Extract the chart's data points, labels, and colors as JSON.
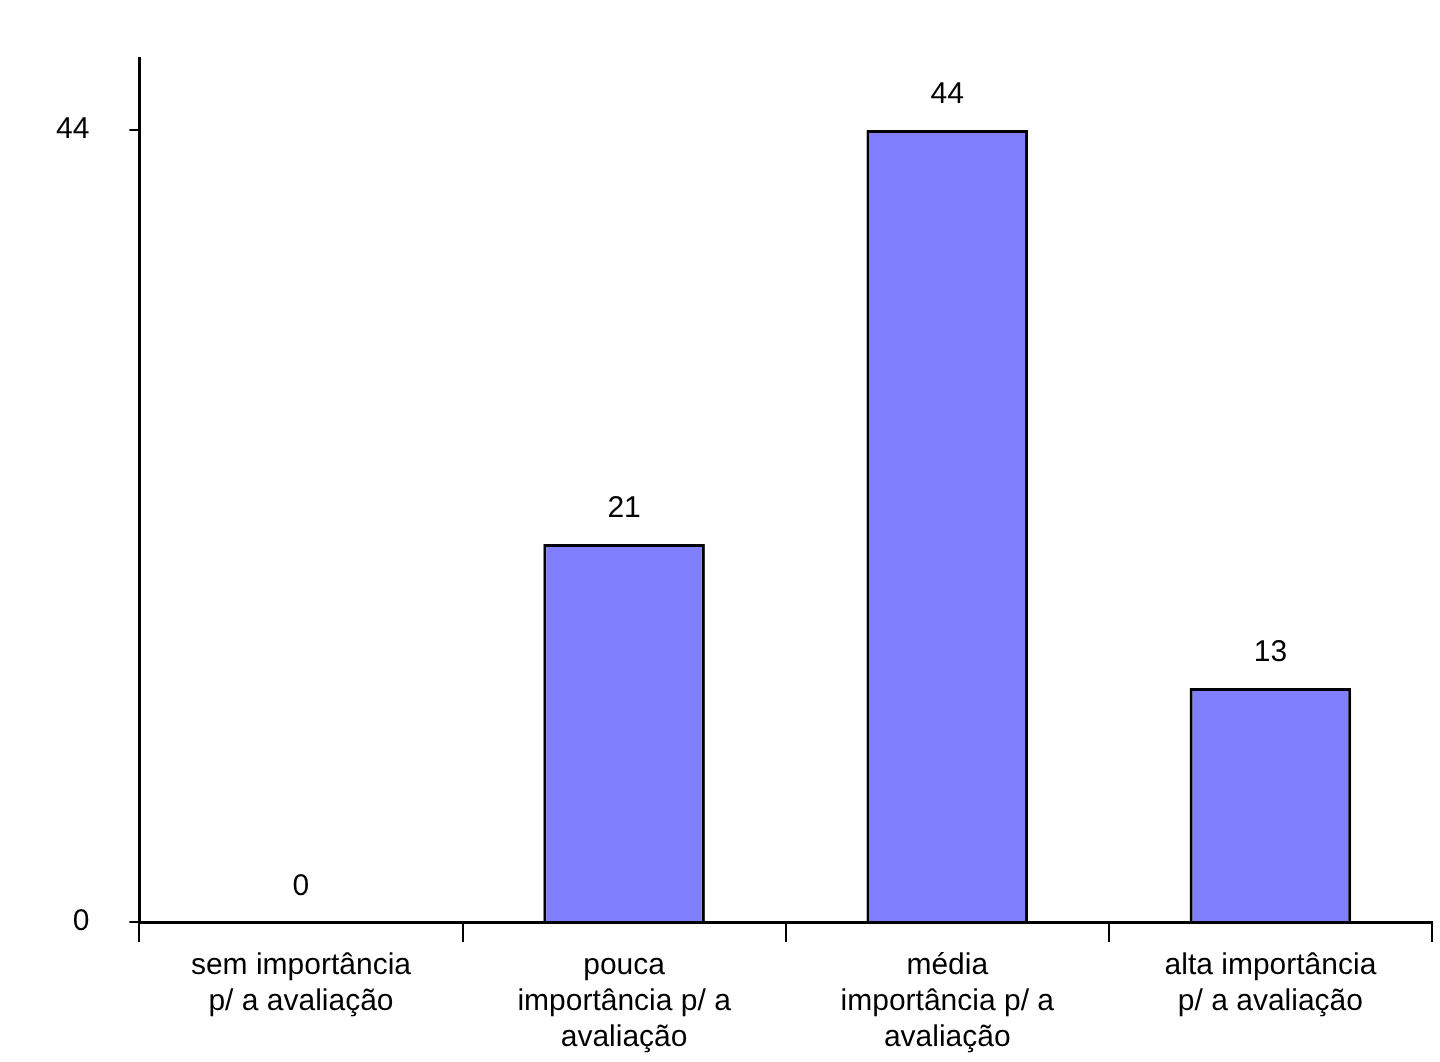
{
  "chart_data": {
    "type": "bar",
    "categories": [
      "sem importância p/ a avaliação",
      "pouca importância p/ a avaliação",
      "média importância p/ a avaliação",
      "alta importância p/ a avaliação"
    ],
    "values": [
      0,
      21,
      44,
      13
    ],
    "color": "#8080ff",
    "ylim": [
      0,
      48
    ],
    "yticks": [
      0,
      44
    ],
    "grid": false,
    "data_labels": true
  }
}
